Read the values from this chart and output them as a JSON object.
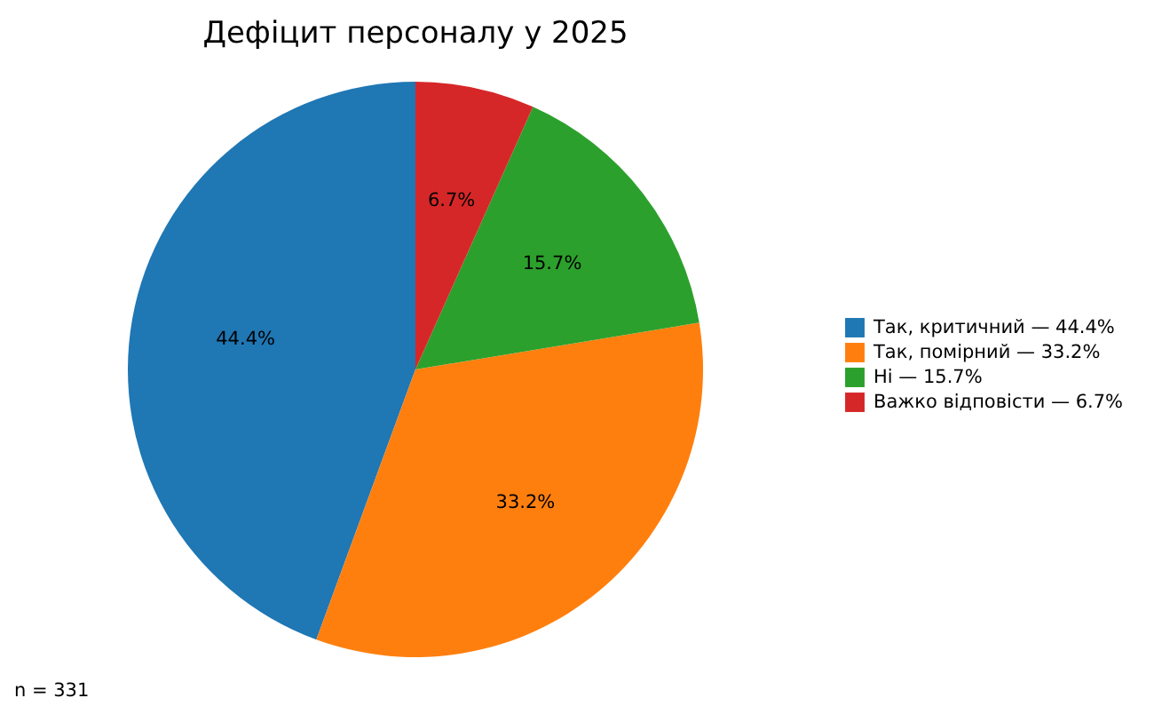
{
  "chart_data": {
    "type": "pie",
    "title": "Дефіцит персоналу у 2025",
    "categories": [
      "Так, критичний — 44.4%",
      "Так, помірний — 33.2%",
      "Ні — 15.7%",
      "Важко відповісти — 6.7%"
    ],
    "values": [
      44.4,
      33.2,
      15.7,
      6.7
    ],
    "value_labels": [
      "44.4%",
      "33.2%",
      "15.7%",
      "6.7%"
    ],
    "colors": [
      "#1f77b4",
      "#ff7f0e",
      "#2ca02c",
      "#d62728"
    ],
    "legend": "right",
    "annotations": [
      "n = 331"
    ]
  }
}
